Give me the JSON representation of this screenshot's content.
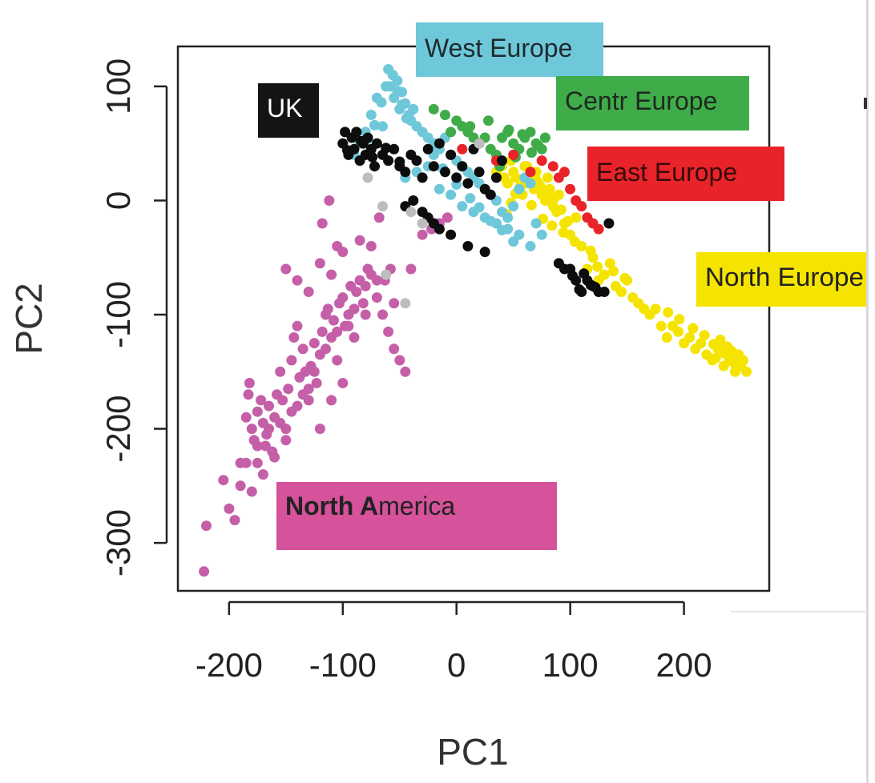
{
  "chart_data": {
    "type": "scatter",
    "xlabel": "PC1",
    "ylabel": "PC2",
    "xlim": [
      -245,
      275
    ],
    "ylim": [
      -342,
      135
    ],
    "xticks": [
      -200,
      -100,
      0,
      100,
      200
    ],
    "yticks": [
      -300,
      -200,
      -100,
      0,
      100
    ],
    "grid": false,
    "legend": "labels placed inside the plot area",
    "series": [
      {
        "name": "North America",
        "color": "#c45fa8",
        "x": [
          -222,
          -220,
          -205,
          -200,
          -195,
          -190,
          -185,
          -183,
          -182,
          -180,
          -178,
          -175,
          -175,
          -172,
          -170,
          -168,
          -167,
          -165,
          -162,
          -160,
          -158,
          -155,
          -153,
          -150,
          -148,
          -145,
          -143,
          -140,
          -138,
          -135,
          -133,
          -130,
          -128,
          -125,
          -123,
          -120,
          -118,
          -115,
          -113,
          -110,
          -108,
          -105,
          -103,
          -100,
          -98,
          -95,
          -93,
          -90,
          -88,
          -85,
          -82,
          -80,
          -78,
          -75,
          -70,
          -65,
          -60,
          -55,
          -50,
          -45,
          -120,
          -110,
          -100,
          -90,
          -80,
          -70,
          -140,
          -150,
          -160,
          -170,
          -180,
          -190,
          -130,
          -125,
          -115,
          -105,
          -95,
          -155,
          -145,
          -135,
          -165,
          -175,
          -185,
          -150,
          -140,
          -130,
          -120,
          -110,
          -100,
          -118,
          -75,
          -68,
          -58,
          -40,
          -30,
          -22,
          -15,
          -8,
          -112,
          -105,
          -85,
          -63,
          -55
        ],
        "y": [
          -325,
          -285,
          -245,
          -270,
          -280,
          -250,
          -190,
          -170,
          -160,
          -200,
          -210,
          -230,
          -185,
          -175,
          -195,
          -215,
          -205,
          -180,
          -220,
          -190,
          -170,
          -150,
          -175,
          -200,
          -165,
          -140,
          -120,
          -110,
          -155,
          -130,
          -150,
          -175,
          -145,
          -125,
          -160,
          -135,
          -115,
          -100,
          -95,
          -120,
          -105,
          -140,
          -90,
          -85,
          -110,
          -100,
          -75,
          -95,
          -80,
          -70,
          -90,
          -75,
          -60,
          -65,
          -85,
          -100,
          -115,
          -130,
          -140,
          -150,
          -200,
          -175,
          -160,
          -120,
          -100,
          -70,
          -180,
          -210,
          -225,
          -240,
          -255,
          -230,
          -165,
          -150,
          -130,
          -115,
          -110,
          -195,
          -185,
          -170,
          -200,
          -215,
          -230,
          -60,
          -70,
          -80,
          -55,
          -65,
          -45,
          -20,
          -40,
          -15,
          -60,
          -60,
          -30,
          -25,
          -20,
          -15,
          0,
          -40,
          -35,
          -70,
          -90
        ]
      },
      {
        "name": "North Europe",
        "color": "#f4e400",
        "x": [
          35,
          40,
          42,
          45,
          48,
          50,
          52,
          55,
          58,
          60,
          62,
          65,
          68,
          70,
          72,
          75,
          78,
          80,
          82,
          85,
          88,
          90,
          95,
          100,
          105,
          110,
          115,
          120,
          125,
          130,
          135,
          140,
          145,
          150,
          155,
          160,
          165,
          170,
          175,
          180,
          185,
          190,
          195,
          200,
          205,
          210,
          215,
          220,
          225,
          230,
          235,
          240,
          245,
          248,
          250,
          252,
          255,
          238,
          242,
          246,
          232,
          228,
          60,
          64,
          70,
          74,
          80,
          86,
          92,
          98,
          56,
          52,
          48,
          44,
          66,
          76,
          84,
          94,
          104,
          118,
          124,
          138,
          148,
          186,
          196,
          208,
          218,
          226,
          236,
          244
        ],
        "y": [
          25,
          30,
          20,
          15,
          35,
          25,
          20,
          10,
          5,
          15,
          30,
          20,
          10,
          25,
          15,
          5,
          0,
          20,
          10,
          -5,
          -10,
          5,
          -20,
          -30,
          -15,
          -40,
          -60,
          -50,
          -70,
          -65,
          -55,
          -75,
          -80,
          -70,
          -85,
          -90,
          -95,
          -100,
          -95,
          -110,
          -120,
          -110,
          -115,
          -125,
          -120,
          -130,
          -125,
          -135,
          -140,
          -130,
          -145,
          -140,
          -150,
          -135,
          -145,
          -140,
          -150,
          -128,
          -132,
          -146,
          -122,
          -138,
          30,
          22,
          18,
          12,
          8,
          2,
          -8,
          -18,
          12,
          6,
          -2,
          -12,
          -4,
          -16,
          -22,
          -28,
          -36,
          -44,
          -58,
          -62,
          -68,
          -98,
          -104,
          -112,
          -118,
          -126,
          -134,
          -142
        ]
      },
      {
        "name": "West Europe",
        "color": "#6ec8da",
        "x": [
          -60,
          -58,
          -55,
          -52,
          -50,
          -48,
          -45,
          -42,
          -40,
          -38,
          -35,
          -30,
          -25,
          -20,
          -15,
          -10,
          -5,
          0,
          5,
          10,
          15,
          20,
          25,
          30,
          35,
          40,
          45,
          50,
          55,
          60,
          65,
          70,
          75,
          -70,
          -75,
          -80,
          -65,
          -85,
          -90,
          -60,
          -45,
          -35,
          -25,
          -15,
          -5,
          5,
          15,
          25,
          35,
          45,
          55,
          65,
          -56,
          -52,
          -48,
          -44,
          -62,
          -66,
          -72,
          -78,
          -20,
          -12,
          0,
          12,
          20,
          30,
          40,
          50
        ],
        "y": [
          115,
          100,
          90,
          105,
          80,
          95,
          85,
          75,
          70,
          80,
          65,
          60,
          55,
          50,
          45,
          55,
          40,
          35,
          30,
          25,
          20,
          15,
          10,
          5,
          0,
          -10,
          -15,
          -5,
          10,
          20,
          15,
          -20,
          -30,
          90,
          75,
          60,
          65,
          50,
          40,
          35,
          20,
          25,
          30,
          10,
          5,
          -5,
          -10,
          -15,
          -20,
          -25,
          -30,
          -40,
          110,
          96,
          84,
          72,
          100,
          86,
          66,
          54,
          40,
          28,
          14,
          2,
          -6,
          -18,
          -26,
          -36
        ]
      },
      {
        "name": "Centr Europe",
        "color": "#3fac49",
        "x": [
          -20,
          -10,
          0,
          5,
          10,
          15,
          20,
          25,
          30,
          35,
          40,
          45,
          50,
          55,
          60,
          65,
          70,
          75,
          78,
          -5,
          12,
          28,
          46,
          58,
          66,
          72,
          52,
          38
        ],
        "y": [
          80,
          75,
          70,
          65,
          60,
          55,
          50,
          55,
          45,
          40,
          55,
          60,
          50,
          45,
          55,
          60,
          50,
          45,
          55,
          60,
          65,
          70,
          62,
          58,
          42,
          48,
          38,
          30
        ]
      },
      {
        "name": "East Europe",
        "color": "#e8242a",
        "x": [
          5,
          20,
          35,
          50,
          65,
          75,
          85,
          90,
          95,
          100,
          105,
          110,
          115,
          120,
          125
        ],
        "y": [
          45,
          50,
          35,
          40,
          25,
          35,
          30,
          20,
          25,
          10,
          0,
          -5,
          -15,
          -20,
          -25
        ]
      },
      {
        "name": "UK",
        "color": "#0d0d0d",
        "x": [
          -100,
          -98,
          -95,
          -92,
          -90,
          -88,
          -85,
          -82,
          -80,
          -78,
          -75,
          -72,
          -70,
          -65,
          -60,
          -55,
          -50,
          -45,
          -40,
          -35,
          -30,
          -25,
          -20,
          -15,
          -10,
          -5,
          0,
          5,
          10,
          15,
          20,
          25,
          30,
          35,
          40,
          90,
          95,
          100,
          105,
          110,
          115,
          120,
          125,
          130,
          -45,
          -38,
          -30,
          -25,
          -20,
          -15,
          -5,
          10,
          25,
          -96,
          -84,
          -74,
          -62,
          -50,
          112,
          118,
          108,
          102,
          122,
          134
        ],
        "y": [
          50,
          60,
          40,
          55,
          45,
          60,
          35,
          50,
          40,
          55,
          45,
          30,
          50,
          40,
          35,
          45,
          30,
          25,
          40,
          35,
          20,
          45,
          30,
          50,
          25,
          40,
          20,
          30,
          15,
          45,
          25,
          10,
          5,
          20,
          35,
          -55,
          -60,
          -60,
          -70,
          -80,
          -70,
          -75,
          -80,
          -80,
          -5,
          0,
          -10,
          -15,
          -20,
          -25,
          -30,
          -40,
          -45,
          44,
          52,
          38,
          46,
          34,
          -64,
          -74,
          -78,
          -66,
          -76,
          -20
        ]
      },
      {
        "name": "",
        "color": "#bdbdbd",
        "x": [
          -78,
          -65,
          -62,
          -45,
          -40,
          -30,
          20
        ],
        "y": [
          20,
          -5,
          -65,
          -90,
          -10,
          -20,
          50
        ]
      }
    ],
    "labels": [
      {
        "text": "West Europe",
        "fill": "#6ec8da",
        "text_color": "#1f2a2c"
      },
      {
        "text": "Centr Europe",
        "fill": "#3fac49",
        "text_color": "#1f2a1f"
      },
      {
        "text": "East Europe",
        "fill": "#e8242a",
        "text_color": "#3a0a0a"
      },
      {
        "text": "UK",
        "fill": "#141414",
        "text_color": "#ffffff"
      },
      {
        "text": "North Europe",
        "fill": "#f4e400",
        "text_color": "#222222"
      },
      {
        "text_bold": "North A",
        "text": "merica",
        "fill": "#d6529a",
        "text_color": "#222222"
      }
    ]
  }
}
